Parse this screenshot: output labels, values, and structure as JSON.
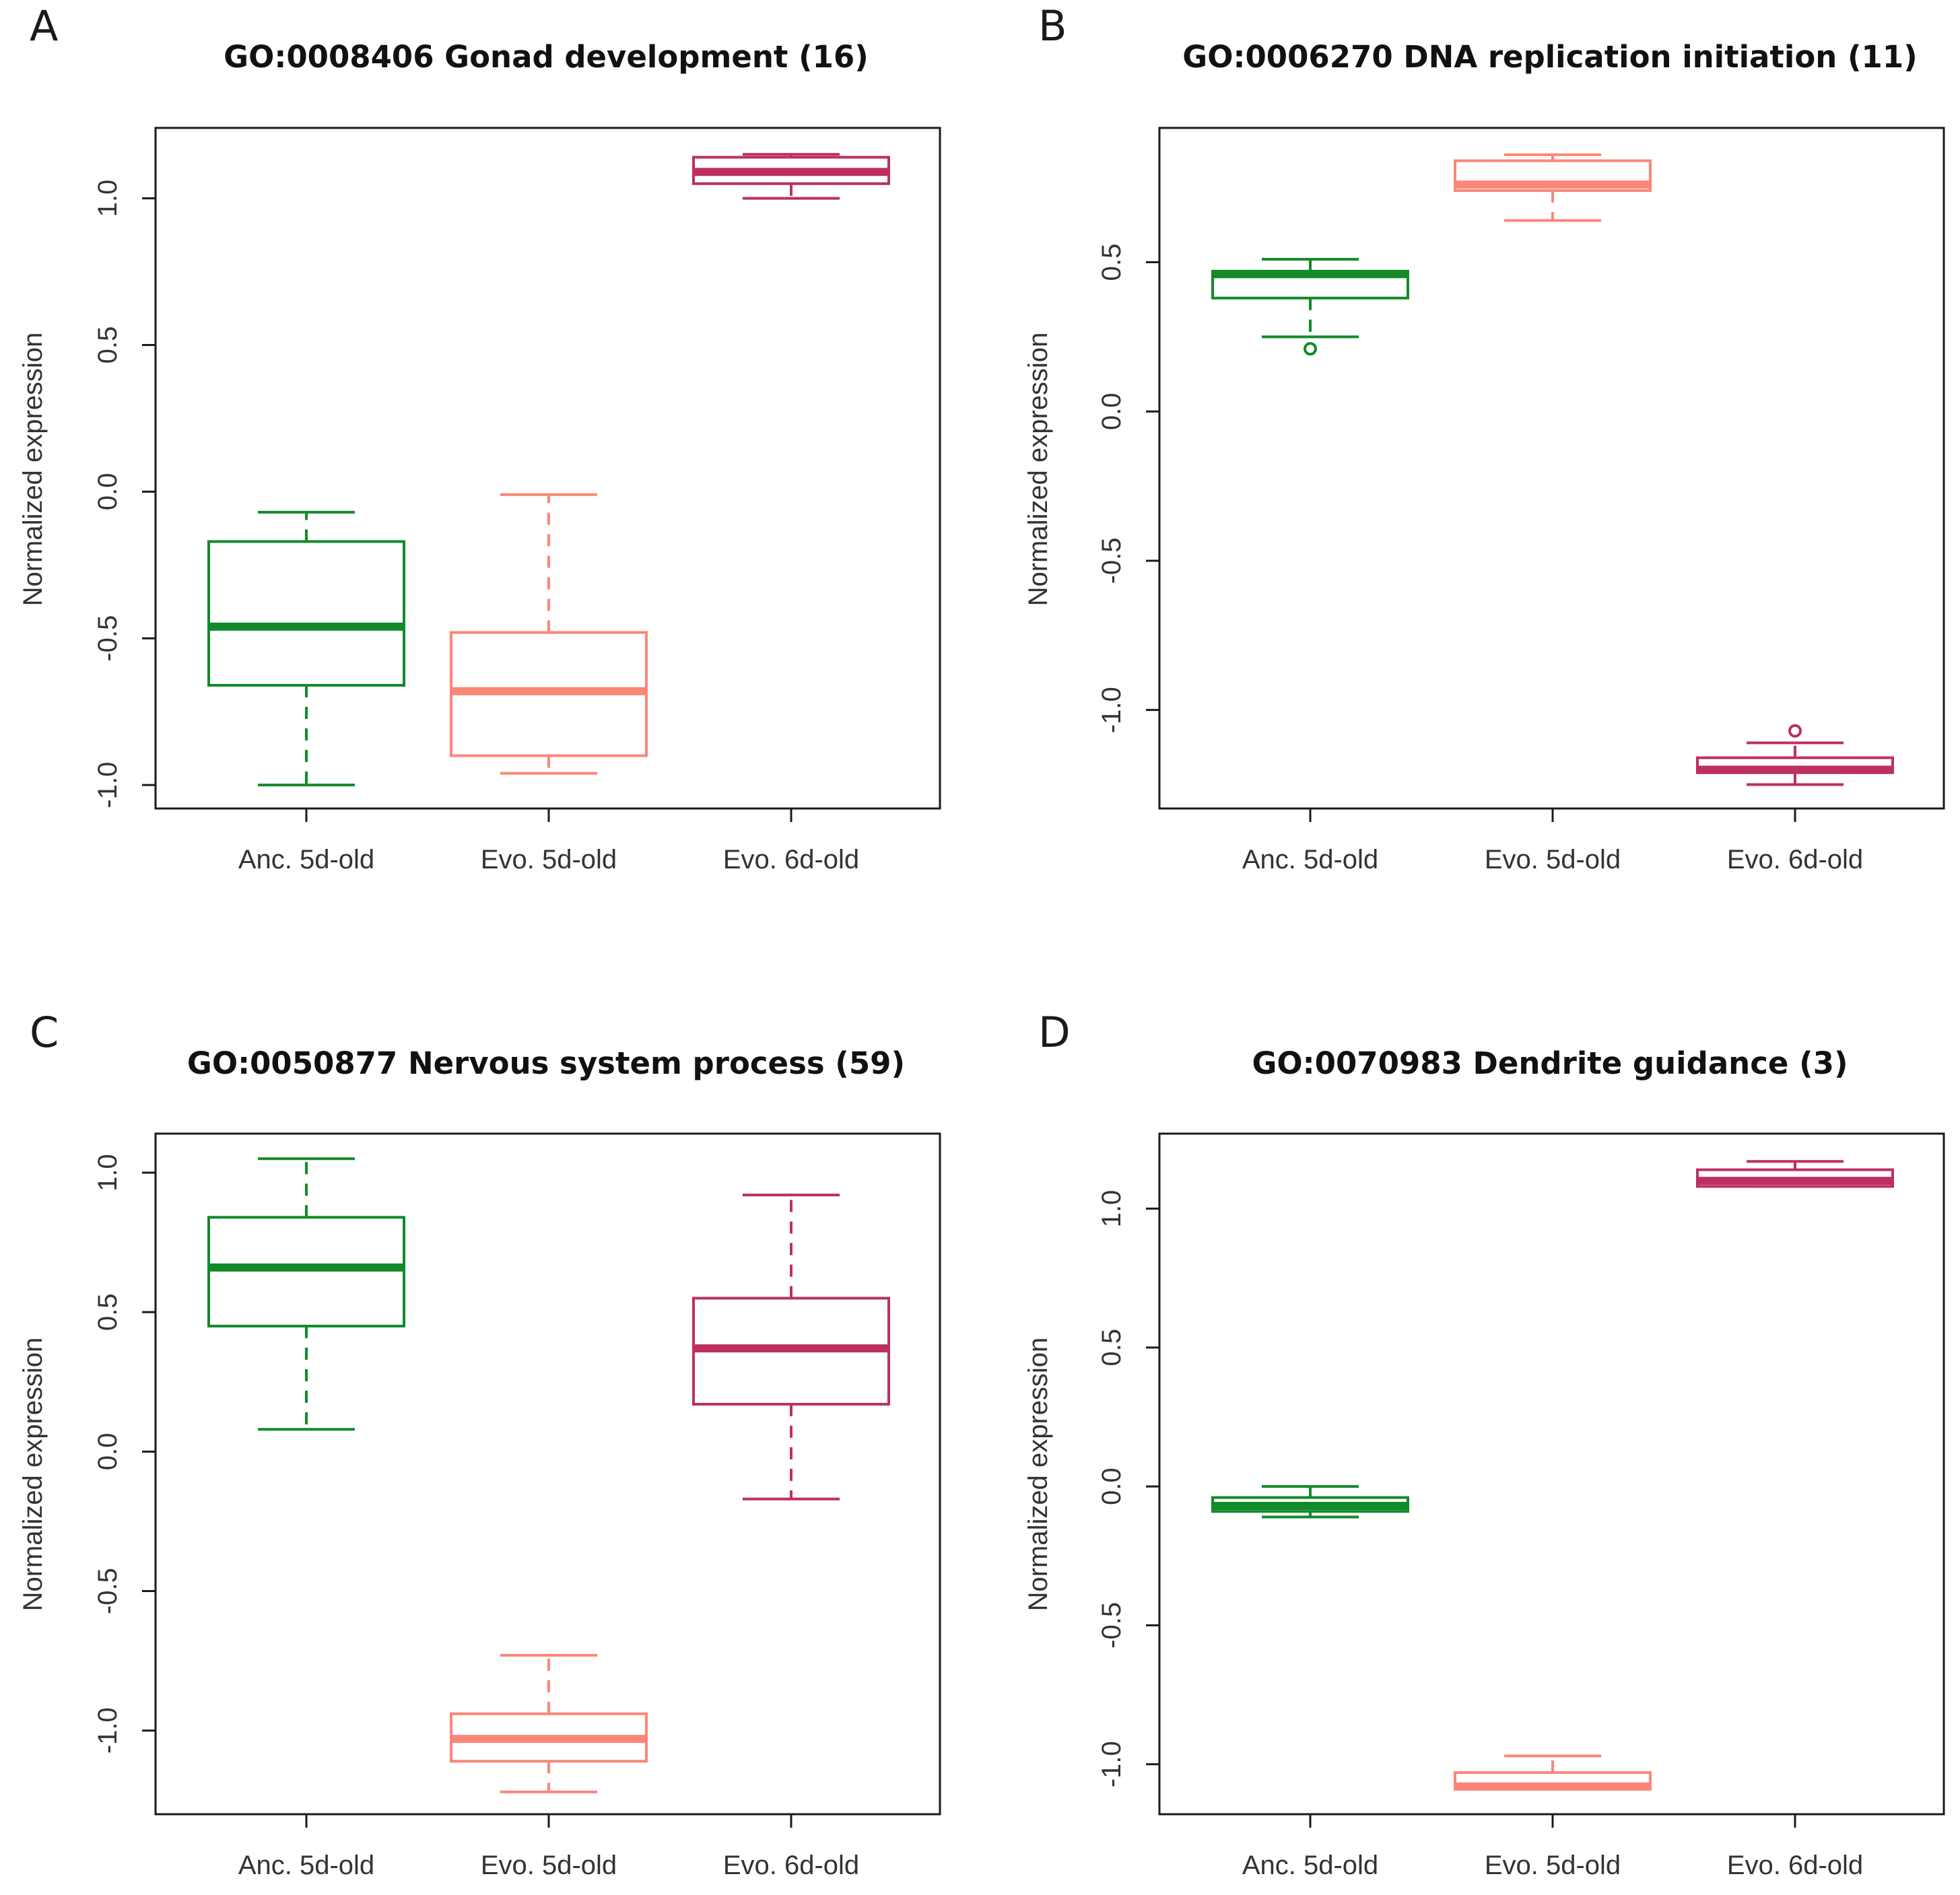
{
  "colors": {
    "anc_5d": "#128a2a",
    "evo_5d": "#fb8677",
    "evo_6d": "#bd2f62"
  },
  "chart_data": [
    {
      "type": "boxplot",
      "panel": "A",
      "title": "GO:0008406 Gonad development (16)",
      "xlabel": "",
      "ylabel": "Normalized expression",
      "categories": [
        "Anc. 5d-old",
        "Evo. 5d-old",
        "Evo. 6d-old"
      ],
      "yticks": [
        "-1.0",
        "-0.5",
        "0.0",
        "0.5",
        "1.0"
      ],
      "ylim": [
        -1.08,
        1.24
      ],
      "boxes": [
        {
          "name": "Anc. 5d-old",
          "min": -1.0,
          "q1": -0.66,
          "median": -0.46,
          "q3": -0.17,
          "max": -0.07,
          "outliers": []
        },
        {
          "name": "Evo. 5d-old",
          "min": -0.96,
          "q1": -0.9,
          "median": -0.68,
          "q3": -0.48,
          "max": -0.01,
          "outliers": []
        },
        {
          "name": "Evo. 6d-old",
          "min": 1.0,
          "q1": 1.05,
          "median": 1.09,
          "q3": 1.14,
          "max": 1.15,
          "outliers": []
        }
      ]
    },
    {
      "type": "boxplot",
      "panel": "B",
      "title": "GO:0006270 DNA replication initiation (11)",
      "xlabel": "",
      "ylabel": "Normalized expression",
      "categories": [
        "Anc. 5d-old",
        "Evo. 5d-old",
        "Evo. 6d-old"
      ],
      "yticks": [
        "-1.0",
        "-0.5",
        "0.0",
        "0.5"
      ],
      "ylim": [
        -1.33,
        0.95
      ],
      "boxes": [
        {
          "name": "Anc. 5d-old",
          "min": 0.25,
          "q1": 0.38,
          "median": 0.46,
          "q3": 0.47,
          "max": 0.51,
          "outliers": [
            0.21
          ]
        },
        {
          "name": "Evo. 5d-old",
          "min": 0.64,
          "q1": 0.74,
          "median": 0.76,
          "q3": 0.84,
          "max": 0.86,
          "outliers": []
        },
        {
          "name": "Evo. 6d-old",
          "min": -1.25,
          "q1": -1.21,
          "median": -1.2,
          "q3": -1.16,
          "max": -1.11,
          "outliers": [
            -1.07
          ]
        }
      ]
    },
    {
      "type": "boxplot",
      "panel": "C",
      "title": "GO:0050877 Nervous system process (59)",
      "xlabel": "",
      "ylabel": "Normalized expression",
      "categories": [
        "Anc. 5d-old",
        "Evo. 5d-old",
        "Evo. 6d-old"
      ],
      "yticks": [
        "-1.0",
        "-0.5",
        "0.0",
        "0.5",
        "1.0"
      ],
      "ylim": [
        -1.3,
        1.14
      ],
      "boxes": [
        {
          "name": "Anc. 5d-old",
          "min": 0.08,
          "q1": 0.45,
          "median": 0.66,
          "q3": 0.84,
          "max": 1.05,
          "outliers": []
        },
        {
          "name": "Evo. 5d-old",
          "min": -1.22,
          "q1": -1.11,
          "median": -1.03,
          "q3": -0.94,
          "max": -0.73,
          "outliers": []
        },
        {
          "name": "Evo. 6d-old",
          "min": -0.17,
          "q1": 0.17,
          "median": 0.37,
          "q3": 0.55,
          "max": 0.92,
          "outliers": []
        }
      ]
    },
    {
      "type": "boxplot",
      "panel": "D",
      "title": "GO:0070983 Dendrite guidance (3)",
      "xlabel": "",
      "ylabel": "Normalized expression",
      "categories": [
        "Anc. 5d-old",
        "Evo. 5d-old",
        "Evo. 6d-old"
      ],
      "yticks": [
        "-1.0",
        "-0.5",
        "0.0",
        "0.5",
        "1.0"
      ],
      "ylim": [
        -1.18,
        1.27
      ],
      "boxes": [
        {
          "name": "Anc. 5d-old",
          "min": -0.11,
          "q1": -0.09,
          "median": -0.07,
          "q3": -0.04,
          "max": 0.0,
          "outliers": []
        },
        {
          "name": "Evo. 5d-old",
          "min": -1.09,
          "q1": -1.09,
          "median": -1.08,
          "q3": -1.03,
          "max": -0.97,
          "outliers": []
        },
        {
          "name": "Evo. 6d-old",
          "min": 1.08,
          "q1": 1.08,
          "median": 1.1,
          "q3": 1.14,
          "max": 1.17,
          "outliers": []
        }
      ]
    }
  ]
}
